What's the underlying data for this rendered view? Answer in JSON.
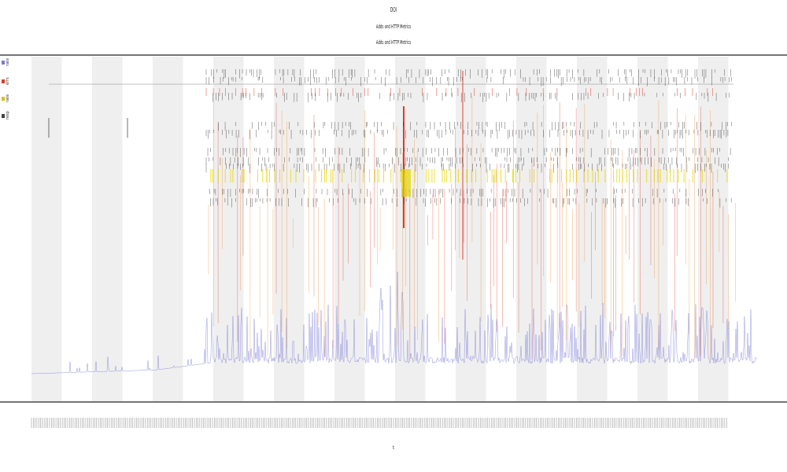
{
  "chart_data": {
    "type": "line",
    "title": "DOI",
    "subtitle_lines": [
      "Adds and HTTP Metrics",
      "Adds and HTTP Metrics"
    ],
    "xlabel": "t",
    "ylabel": "",
    "legend_placement": "left",
    "grid": false,
    "series": [
      {
        "name": "rate",
        "color": "#7b7bd8"
      },
      {
        "name": "errs",
        "color": "#e33a2a"
      },
      {
        "name": "rate",
        "color": "#d8c400"
      },
      {
        "name": "resp",
        "color": "#444444"
      }
    ]
  },
  "colors": {
    "band": "#efefef",
    "axis": "#222222",
    "rate": "#7b7bd8",
    "errors": "#e33a2a",
    "orange": "#f08a2a",
    "yellow": "#e6d600",
    "black": "#111111"
  }
}
